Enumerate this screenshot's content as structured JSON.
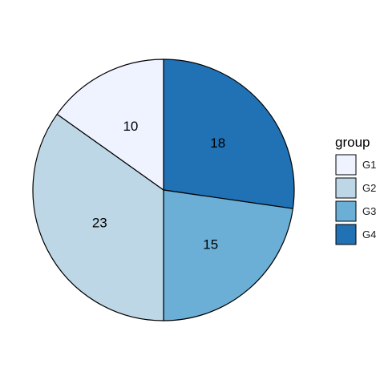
{
  "chart_data": {
    "type": "pie",
    "categories": [
      "G1",
      "G2",
      "G3",
      "G4"
    ],
    "values": [
      10,
      23,
      15,
      18
    ],
    "data_labels": [
      "10",
      "23",
      "15",
      "18"
    ],
    "colors": [
      "#EFF3FF",
      "#BDD7E7",
      "#6BAED6",
      "#2171B5"
    ],
    "outline_color": "#000000",
    "legend": {
      "title": "group",
      "placement": "right",
      "entries": [
        "G1",
        "G2",
        "G3",
        "G4"
      ]
    }
  }
}
